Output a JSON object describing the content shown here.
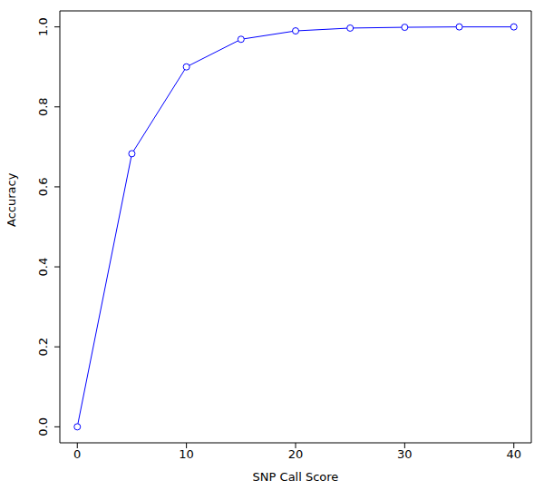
{
  "chart_data": {
    "type": "line",
    "x_label": "SNP Call Score",
    "y_label": "Accuracy",
    "x": [
      0,
      5,
      10,
      15,
      20,
      25,
      30,
      35,
      40
    ],
    "values": [
      0,
      0.683,
      0.9,
      0.969,
      0.99,
      0.997,
      0.999,
      1.0,
      1.0
    ],
    "color": "#0000ff",
    "marker": "open_circle",
    "line_style": "solid",
    "xlim": [
      -1.6,
      41.6
    ],
    "ylim": [
      -0.04,
      1.04
    ],
    "xticks": [
      0,
      10,
      20,
      30,
      40
    ],
    "yticks": [
      {
        "value": 0,
        "label": "0.0"
      },
      {
        "value": 0.2,
        "label": "0.2"
      },
      {
        "value": 0.4,
        "label": "0.4"
      },
      {
        "value": 0.6,
        "label": "0.6"
      },
      {
        "value": 0.8,
        "label": "0.8"
      },
      {
        "value": 1.0,
        "label": "1.0"
      }
    ],
    "grid": false
  }
}
